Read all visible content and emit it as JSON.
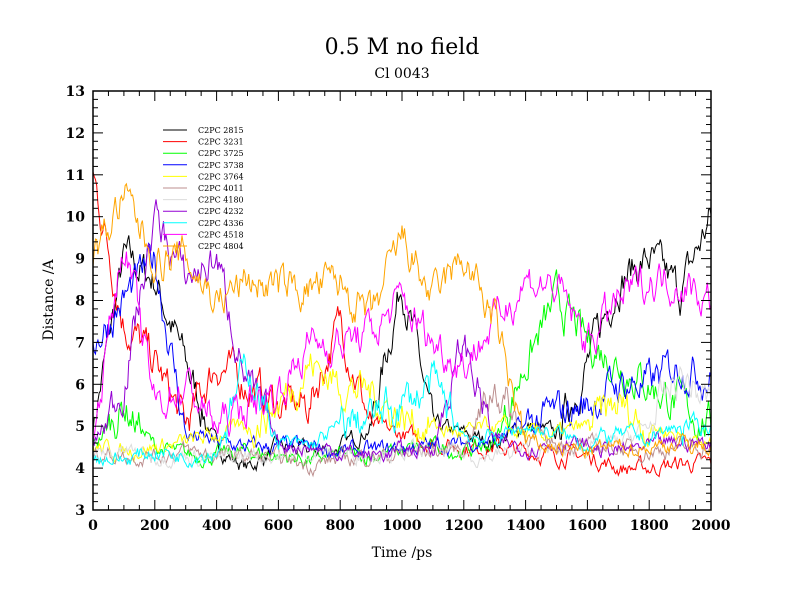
{
  "chart_data": {
    "type": "line",
    "title": "0.5 M no field",
    "subtitle": "Cl 0043",
    "xlabel": "Time /ps",
    "ylabel": "Distance /A",
    "xlim": [
      0,
      2000
    ],
    "ylim": [
      3,
      13
    ],
    "xticks": [
      0,
      200,
      400,
      600,
      800,
      1000,
      1200,
      1400,
      1600,
      1800,
      2000
    ],
    "yticks": [
      3,
      4,
      5,
      6,
      7,
      8,
      9,
      10,
      11,
      12,
      13
    ],
    "legend_position": "top-left",
    "x": [
      0,
      100,
      200,
      300,
      400,
      500,
      600,
      700,
      800,
      900,
      1000,
      1100,
      1200,
      1300,
      1400,
      1500,
      1600,
      1700,
      1800,
      1900,
      2000
    ],
    "series": [
      {
        "name": "C2PC 2815",
        "color": "#000000",
        "values": [
          5,
          9,
          8.5,
          6.5,
          4.5,
          4,
          4.5,
          4.4,
          4.5,
          5,
          8.5,
          5,
          4.8,
          4.6,
          5,
          4.8,
          6.5,
          8.5,
          9,
          8.2,
          10
        ]
      },
      {
        "name": "C2PC 3231",
        "color": "#ff0000",
        "values": [
          11,
          7.5,
          6.5,
          5,
          6.5,
          6,
          5.5,
          5.5,
          7.5,
          5,
          4.8,
          4.6,
          4.5,
          4.5,
          4.4,
          4.3,
          4.3,
          4,
          4,
          4.1,
          4.1
        ]
      },
      {
        "name": "C2PC 3725",
        "color": "#00ff00",
        "values": [
          4.5,
          5.5,
          4.5,
          4.3,
          4.3,
          4.4,
          4.3,
          4.2,
          4.3,
          4.3,
          4.4,
          4.5,
          4.4,
          4.6,
          6.5,
          8,
          7,
          6.5,
          6,
          5.5,
          5
        ]
      },
      {
        "name": "C2PC 3738",
        "color": "#0000ff",
        "values": [
          7,
          8,
          9,
          4.8,
          4.6,
          4.5,
          4.5,
          4.5,
          4.4,
          4.4,
          4.5,
          4.5,
          4.6,
          4.7,
          5,
          5.3,
          5.5,
          6,
          6,
          6.5,
          6.2
        ]
      },
      {
        "name": "C2PC 3764",
        "color": "#ffff00",
        "values": [
          4.5,
          4.4,
          4.5,
          4.6,
          4.8,
          5,
          5.5,
          6.5,
          6,
          5.8,
          5.2,
          5,
          4.8,
          5,
          4.8,
          4.8,
          5,
          5.5,
          5,
          4.8,
          4.5
        ]
      },
      {
        "name": "C2PC 4011",
        "color": "#bc8f8f",
        "values": [
          4.4,
          4.3,
          4.3,
          4.4,
          4.3,
          4.3,
          4.2,
          4.1,
          4.2,
          4.3,
          4.3,
          4.4,
          4.5,
          6,
          4.8,
          4.6,
          4.5,
          4.5,
          4.4,
          4.5,
          4.5
        ]
      },
      {
        "name": "C2PC 4180",
        "color": "#dcdcdc",
        "values": [
          4.3,
          4.4,
          4.3,
          4.3,
          4.2,
          4.3,
          4.3,
          4.4,
          4.3,
          4.4,
          4.4,
          4.4,
          4.3,
          4.3,
          4.4,
          4.4,
          4.5,
          4.6,
          5,
          6.2,
          5.5
        ]
      },
      {
        "name": "C2PC 4232",
        "color": "#9400d3",
        "values": [
          4.5,
          6,
          10,
          8.5,
          9,
          6,
          4.6,
          4.5,
          4.4,
          4.3,
          4.4,
          4.5,
          7,
          4.6,
          4.5,
          4.6,
          4.5,
          4.4,
          4.5,
          4.6,
          4.6
        ]
      },
      {
        "name": "C2PC 4336",
        "color": "#00ffff",
        "values": [
          4.3,
          4.2,
          4.4,
          4.3,
          4.4,
          6.5,
          4.6,
          4.5,
          5,
          5.2,
          5.5,
          6,
          4.8,
          4.7,
          5,
          4.8,
          4.6,
          4.8,
          4.7,
          5,
          5
        ]
      },
      {
        "name": "C2PC 4518",
        "color": "#ff00ff",
        "values": [
          4.8,
          9.5,
          5.5,
          6,
          5,
          5.5,
          5.8,
          7,
          7,
          7.2,
          8,
          7,
          6.5,
          7.5,
          8.5,
          8.3,
          7,
          8,
          8.5,
          8.5,
          8
        ]
      },
      {
        "name": "C2PC 4804",
        "color": "#ffa500",
        "values": [
          9,
          10.5,
          9,
          9,
          8,
          8.5,
          8.3,
          8.3,
          8.4,
          7.5,
          9.5,
          8,
          9,
          7.5,
          4.6,
          4.5,
          4.4,
          4.5,
          4.5,
          4.6,
          4.5
        ]
      }
    ]
  }
}
